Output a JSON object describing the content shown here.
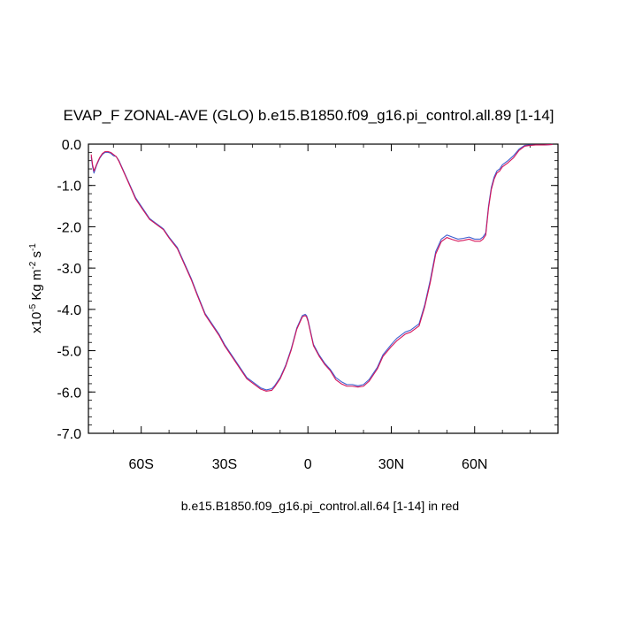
{
  "chart_data": {
    "type": "line",
    "title": "EVAP_F ZONAL-AVE (GLO) b.e15.B1850.f09_g16.pi_control.all.89 [1-14]",
    "ylabel": {
      "prefix": "x10",
      "exp1": "-5",
      "mid": " Kg m",
      "exp2": "-2",
      "mid2": " s",
      "exp3": "-1"
    },
    "xlabel_note": "b.e15.B1850.f09_g16.pi_control.all.64 [1-14] in red",
    "xlim": [
      -79,
      90
    ],
    "ylim": [
      -7.0,
      0.0
    ],
    "x_ticks": [
      {
        "value": -60,
        "label": "60S"
      },
      {
        "value": -30,
        "label": "30S"
      },
      {
        "value": 0,
        "label": "0"
      },
      {
        "value": 30,
        "label": "30N"
      },
      {
        "value": 60,
        "label": "60N"
      }
    ],
    "y_ticks": [
      {
        "value": 0.0,
        "label": "0.0"
      },
      {
        "value": -1.0,
        "label": "-1.0"
      },
      {
        "value": -2.0,
        "label": "-2.0"
      },
      {
        "value": -3.0,
        "label": "-3.0"
      },
      {
        "value": -4.0,
        "label": "-4.0"
      },
      {
        "value": -5.0,
        "label": "-5.0"
      },
      {
        "value": -6.0,
        "label": "-6.0"
      },
      {
        "value": -7.0,
        "label": "-7.0"
      }
    ],
    "series": [
      {
        "color": "#3f5fcf",
        "x": [
          -78,
          -77.5,
          -77,
          -76,
          -75,
          -74,
          -73,
          -72,
          -71,
          -70,
          -69,
          -68,
          -67,
          -65,
          -62,
          -60,
          -57,
          -55,
          -52,
          -50,
          -47,
          -45,
          -42,
          -40,
          -37,
          -35,
          -32,
          -30,
          -27,
          -25,
          -22,
          -20,
          -17,
          -15,
          -13,
          -12,
          -10,
          -8,
          -6,
          -4,
          -2,
          -1,
          -0.5,
          0,
          0.5,
          1,
          2,
          4,
          6,
          8,
          10,
          12,
          14,
          16,
          18,
          20,
          22,
          25,
          27,
          30,
          32,
          35,
          37,
          40,
          42,
          44,
          46,
          48,
          50,
          52,
          54,
          56,
          58,
          60,
          62,
          63,
          64,
          65,
          66,
          67,
          68,
          69,
          70,
          72,
          74,
          76,
          78,
          80,
          82,
          85,
          88
        ],
        "y": [
          -0.3,
          -0.55,
          -0.7,
          -0.5,
          -0.35,
          -0.25,
          -0.2,
          -0.2,
          -0.22,
          -0.28,
          -0.3,
          -0.4,
          -0.55,
          -0.85,
          -1.3,
          -1.5,
          -1.8,
          -1.9,
          -2.05,
          -2.25,
          -2.5,
          -2.8,
          -3.25,
          -3.6,
          -4.1,
          -4.3,
          -4.6,
          -4.85,
          -5.15,
          -5.35,
          -5.65,
          -5.75,
          -5.9,
          -5.95,
          -5.92,
          -5.85,
          -5.65,
          -5.35,
          -4.95,
          -4.45,
          -4.15,
          -4.12,
          -4.15,
          -4.25,
          -4.4,
          -4.55,
          -4.85,
          -5.1,
          -5.3,
          -5.45,
          -5.65,
          -5.75,
          -5.82,
          -5.82,
          -5.85,
          -5.82,
          -5.7,
          -5.4,
          -5.1,
          -4.85,
          -4.7,
          -4.55,
          -4.5,
          -4.35,
          -3.9,
          -3.3,
          -2.6,
          -2.3,
          -2.2,
          -2.25,
          -2.3,
          -2.28,
          -2.25,
          -2.3,
          -2.3,
          -2.25,
          -2.15,
          -1.5,
          -1.05,
          -0.8,
          -0.65,
          -0.6,
          -0.5,
          -0.4,
          -0.28,
          -0.12,
          -0.03,
          -0.02,
          -0.02,
          -0.02,
          -0.01
        ]
      },
      {
        "color": "#d4145a",
        "x": [
          -78,
          -77.5,
          -77,
          -76,
          -75,
          -74,
          -73,
          -72,
          -71,
          -70,
          -69,
          -68,
          -67,
          -65,
          -62,
          -60,
          -57,
          -55,
          -52,
          -50,
          -47,
          -45,
          -42,
          -40,
          -37,
          -35,
          -32,
          -30,
          -27,
          -25,
          -22,
          -20,
          -17,
          -15,
          -13,
          -12,
          -10,
          -8,
          -6,
          -4,
          -2,
          -1,
          -0.5,
          0,
          0.5,
          1,
          2,
          4,
          6,
          8,
          10,
          12,
          14,
          16,
          18,
          20,
          22,
          25,
          27,
          30,
          32,
          35,
          37,
          40,
          42,
          44,
          46,
          48,
          50,
          52,
          54,
          56,
          58,
          60,
          62,
          63,
          64,
          65,
          66,
          67,
          68,
          69,
          70,
          72,
          74,
          76,
          78,
          80,
          82,
          85,
          88
        ],
        "y": [
          -0.25,
          -0.5,
          -0.65,
          -0.48,
          -0.33,
          -0.23,
          -0.18,
          -0.18,
          -0.2,
          -0.25,
          -0.3,
          -0.42,
          -0.57,
          -0.87,
          -1.33,
          -1.53,
          -1.82,
          -1.92,
          -2.07,
          -2.27,
          -2.53,
          -2.83,
          -3.28,
          -3.63,
          -4.13,
          -4.33,
          -4.63,
          -4.88,
          -5.18,
          -5.38,
          -5.68,
          -5.78,
          -5.93,
          -5.98,
          -5.96,
          -5.88,
          -5.68,
          -5.38,
          -4.98,
          -4.48,
          -4.18,
          -4.15,
          -4.18,
          -4.28,
          -4.43,
          -4.58,
          -4.88,
          -5.13,
          -5.33,
          -5.48,
          -5.7,
          -5.8,
          -5.86,
          -5.86,
          -5.88,
          -5.86,
          -5.74,
          -5.44,
          -5.14,
          -4.9,
          -4.76,
          -4.6,
          -4.55,
          -4.4,
          -3.95,
          -3.36,
          -2.66,
          -2.36,
          -2.26,
          -2.31,
          -2.35,
          -2.33,
          -2.3,
          -2.35,
          -2.35,
          -2.3,
          -2.2,
          -1.55,
          -1.1,
          -0.85,
          -0.7,
          -0.65,
          -0.55,
          -0.45,
          -0.33,
          -0.15,
          -0.05,
          -0.03,
          -0.02,
          -0.02,
          -0.01
        ]
      }
    ],
    "grid": false
  }
}
